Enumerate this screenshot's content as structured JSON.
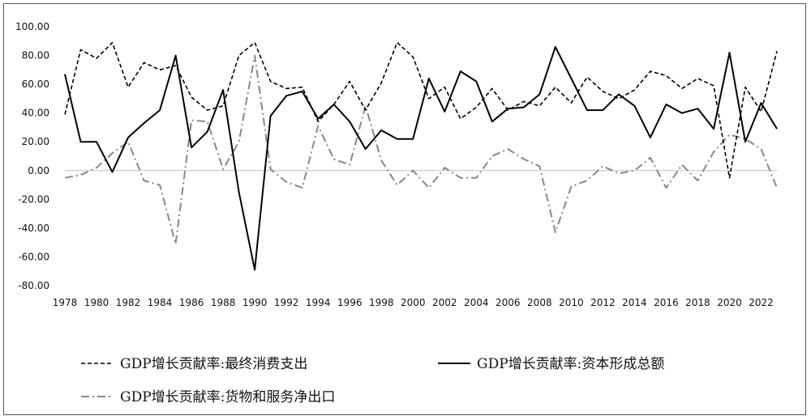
{
  "chart_data": {
    "type": "line",
    "title": "",
    "xlabel": "",
    "ylabel": "",
    "ylim": [
      -80,
      100
    ],
    "y_tick_labels": [
      "100.00",
      "80.00",
      "60.00",
      "40.00",
      "20.00",
      "0.00",
      "-20.00",
      "-40.00",
      "-60.00",
      "-80.00"
    ],
    "y_tick_values": [
      100,
      80,
      60,
      40,
      20,
      0,
      -20,
      -40,
      -60,
      -80
    ],
    "x_tick_labels": [
      "1978",
      "1980",
      "1982",
      "1984",
      "1986",
      "1988",
      "1990",
      "1992",
      "1994",
      "1996",
      "1998",
      "2000",
      "2002",
      "2004",
      "2006",
      "2008",
      "2010",
      "2012",
      "2014",
      "2016",
      "2018",
      "2020",
      "2022"
    ],
    "x_tick_values": [
      1978,
      1980,
      1982,
      1984,
      1986,
      1988,
      1990,
      1992,
      1994,
      1996,
      1998,
      2000,
      2002,
      2004,
      2006,
      2008,
      2010,
      2012,
      2014,
      2016,
      2018,
      2020,
      2022
    ],
    "x": [
      1978,
      1979,
      1980,
      1981,
      1982,
      1983,
      1984,
      1985,
      1986,
      1987,
      1988,
      1989,
      1990,
      1991,
      1992,
      1993,
      1994,
      1995,
      1996,
      1997,
      1998,
      1999,
      2000,
      2001,
      2002,
      2003,
      2004,
      2005,
      2006,
      2007,
      2008,
      2009,
      2010,
      2011,
      2012,
      2013,
      2014,
      2015,
      2016,
      2017,
      2018,
      2019,
      2020,
      2021,
      2022,
      2023
    ],
    "grid": false,
    "legend_position": "bottom",
    "series": [
      {
        "name": "GDP增长贡献率:最终消费支出",
        "style": "dashed",
        "color": "#000000",
        "values": [
          39,
          84,
          78,
          89,
          58,
          75,
          70,
          73,
          51,
          42,
          45,
          80,
          89,
          62,
          57,
          58,
          34,
          46,
          62,
          42,
          61,
          89,
          79,
          50,
          58,
          36,
          44,
          57,
          42,
          48,
          45,
          58,
          47,
          65,
          55,
          50,
          56,
          69,
          66,
          57,
          64,
          59,
          -5,
          58,
          41,
          83
        ]
      },
      {
        "name": "GDP增长贡献率:资本形成总额",
        "style": "solid",
        "color": "#000000",
        "values": [
          67,
          20,
          20,
          -1,
          23,
          33,
          42,
          80,
          16,
          27,
          56,
          -15,
          -69,
          38,
          52,
          55,
          36,
          46,
          34,
          15,
          28,
          22,
          22,
          64,
          41,
          69,
          62,
          34,
          43,
          44,
          53,
          86,
          64,
          42,
          42,
          53,
          45,
          23,
          46,
          40,
          43,
          29,
          82,
          20,
          47,
          29
        ]
      },
      {
        "name": "GDP增长贡献率:货物和服务净出口",
        "style": "dashdot",
        "color": "#888888",
        "values": [
          -5,
          -3,
          2,
          12,
          20,
          -7,
          -10,
          -51,
          35,
          34,
          1,
          20,
          80,
          1,
          -8,
          -12,
          31,
          8,
          4,
          45,
          7,
          -10,
          0,
          -12,
          2,
          -5,
          -5,
          10,
          15,
          8,
          3,
          -43,
          -11,
          -7,
          3,
          -2,
          0,
          9,
          -12,
          4,
          -7,
          13,
          25,
          22,
          15,
          -12
        ]
      }
    ]
  }
}
